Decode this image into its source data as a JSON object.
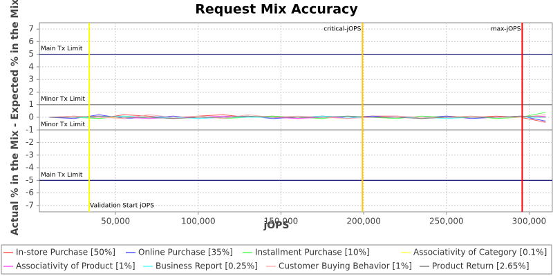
{
  "chart_data": {
    "type": "line",
    "title": "Request Mix Accuracy",
    "x_label": "jOPS",
    "y_label": "Actual % in the Mix - Expected % in the Mix",
    "x": [
      10000,
      25000,
      40000,
      55000,
      70000,
      85000,
      100000,
      115000,
      130000,
      145000,
      160000,
      175000,
      190000,
      205000,
      220000,
      235000,
      250000,
      265000,
      280000,
      295000,
      310000
    ],
    "series": [
      {
        "name": "In-store Purchase [50%]",
        "color": "#ff5555",
        "values": [
          0,
          0.1,
          -0.1,
          0.2,
          0.1,
          -0.1,
          0.1,
          0.2,
          0,
          0.1,
          -0.1,
          0.1,
          0,
          0.1,
          0.1,
          -0.1,
          0.1,
          0,
          0.1,
          0,
          -0.4
        ]
      },
      {
        "name": "Online Purchase [35%]",
        "color": "#5555ff",
        "values": [
          0,
          -0.1,
          0.2,
          -0.1,
          0,
          0.1,
          -0.1,
          0,
          0.1,
          -0.1,
          0,
          0.1,
          -0.1,
          0.1,
          0,
          0,
          0.1,
          -0.1,
          0,
          0.1,
          -0.3
        ]
      },
      {
        "name": "Installment Purchase [10%]",
        "color": "#55ff55",
        "values": [
          0,
          0,
          -0.1,
          0.1,
          -0.1,
          0,
          0.1,
          -0.1,
          0,
          0.1,
          0,
          -0.1,
          0.1,
          0,
          -0.1,
          0.1,
          0,
          0.1,
          -0.1,
          0,
          0.4
        ]
      },
      {
        "name": "Associativity of Category [0.1%]",
        "color": "#ffff55",
        "values": [
          0,
          0,
          0,
          0,
          0,
          0,
          0,
          0,
          0,
          0,
          0,
          0,
          0,
          0,
          0,
          0,
          0,
          0,
          0,
          0,
          0
        ]
      },
      {
        "name": "Associativity of Product [1%]",
        "color": "#ff55ff",
        "values": [
          0,
          0,
          0.1,
          0,
          -0.1,
          0,
          0,
          0.1,
          0,
          0,
          -0.1,
          0,
          0,
          0,
          0.1,
          0,
          0,
          0,
          0,
          0,
          0.1
        ]
      },
      {
        "name": "Business Report [0.25%]",
        "color": "#55ffff",
        "values": [
          0,
          0,
          0,
          0.1,
          0,
          0,
          -0.1,
          0,
          0,
          0,
          0,
          0.1,
          0,
          0,
          0,
          0,
          -0.1,
          0,
          0,
          0,
          0
        ]
      },
      {
        "name": "Customer Buying Behavior [1%]",
        "color": "#ffafaf",
        "values": [
          0,
          0.1,
          0,
          -0.1,
          0.2,
          0,
          0.1,
          -0.1,
          0.2,
          0,
          0.1,
          0,
          -0.1,
          0,
          0.1,
          0,
          0,
          0.1,
          0,
          0,
          0.2
        ]
      },
      {
        "name": "Product Return [2.65%]",
        "color": "#808080",
        "values": [
          0,
          0,
          0.1,
          0,
          0,
          -0.1,
          0,
          0,
          0.1,
          0,
          0,
          0,
          0.1,
          0,
          0,
          -0.1,
          0,
          0,
          0,
          0.1,
          0
        ]
      }
    ],
    "xlim": [
      4000,
      314000
    ],
    "xticks": [
      {
        "value": 50000,
        "label": "50,000"
      },
      {
        "value": 100000,
        "label": "100,000"
      },
      {
        "value": 150000,
        "label": "150,000"
      },
      {
        "value": 200000,
        "label": "200,000"
      },
      {
        "value": 250000,
        "label": "250,000"
      },
      {
        "value": 300000,
        "label": "300,000"
      }
    ],
    "ylim": [
      -7.5,
      7.5
    ],
    "yticks": [
      -7,
      -6,
      -5,
      -4,
      -3,
      -2,
      -1,
      0,
      1,
      2,
      3,
      4,
      5,
      6,
      7
    ],
    "grid": true,
    "hlines": [
      {
        "value": 5,
        "label": "Main Tx Limit",
        "color": "#000066"
      },
      {
        "value": 1,
        "label": "Minor Tx Limit",
        "color": "#808080"
      },
      {
        "value": -1,
        "label": "Minor Tx Limit",
        "color": "#808080"
      },
      {
        "value": -5,
        "label": "Main Tx Limit",
        "color": "#000066"
      }
    ],
    "vlines": [
      {
        "value": 34100,
        "label": "Validation Start jOPS",
        "color": "#ffff00"
      },
      {
        "value": 199250,
        "label": "critical-jOPS",
        "color": "#ffc800"
      },
      {
        "value": 295800,
        "label": "max-jOPS",
        "color": "#ff0000"
      }
    ]
  }
}
